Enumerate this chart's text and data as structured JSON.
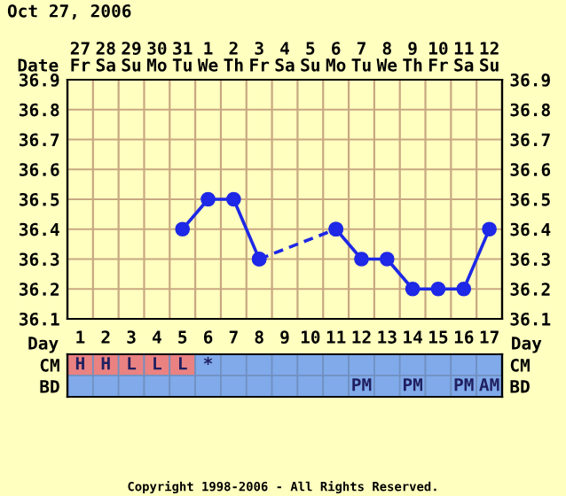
{
  "chart_data": [
    {
      "type": "line",
      "title": "Oct 27, 2006",
      "xlabel": "Date",
      "categories": [
        "27\nFr",
        "28\nSa",
        "29\nSu",
        "30\nMo",
        "31\nTu",
        "1\nWe",
        "2\nTh",
        "3\nFr",
        "4\nSa",
        "5\nSu",
        "6\nMo",
        "7\nTu",
        "8\nWe",
        "9\nTh",
        "10\nFr",
        "11\nSa",
        "12\nSu"
      ],
      "ylim": [
        36.1,
        36.9
      ],
      "yticks": [
        36.1,
        36.2,
        36.3,
        36.4,
        36.5,
        36.6,
        36.7,
        36.8,
        36.9
      ],
      "y2lim": [
        36.1,
        36.9
      ],
      "y2ticks": [
        36.1,
        36.2,
        36.3,
        36.4,
        36.5,
        36.6,
        36.7,
        36.8,
        36.9
      ],
      "grid": true,
      "marker": "circle",
      "series": [
        {
          "color": "#1e28e6",
          "line_style": "solid",
          "values": [
            null,
            null,
            null,
            null,
            36.4,
            36.5,
            36.5,
            36.3,
            null,
            null,
            null,
            null,
            null,
            null,
            null,
            null,
            null
          ]
        },
        {
          "color": "#1e28e6",
          "line_style": "solid",
          "values": [
            null,
            null,
            null,
            null,
            null,
            null,
            null,
            null,
            null,
            null,
            36.4,
            36.3,
            36.3,
            36.2,
            36.2,
            36.2,
            36.4
          ]
        },
        {
          "color": "#1e28e6",
          "line_style": "dashed",
          "values": [
            null,
            null,
            null,
            null,
            null,
            null,
            null,
            36.3,
            null,
            null,
            36.4,
            null,
            null,
            null,
            null,
            null,
            null
          ]
        }
      ]
    },
    {
      "type": "heatmap",
      "xlabel": "Day",
      "categories": [
        "1",
        "2",
        "3",
        "4",
        "5",
        "6",
        "7",
        "8",
        "9",
        "10",
        "11",
        "12",
        "13",
        "14",
        "15",
        "16",
        "17"
      ],
      "y_categories": [
        "CM",
        "BD"
      ],
      "y2_categories": [
        "CM",
        "BD"
      ],
      "cells": [
        [
          null,
          null,
          null,
          null,
          null,
          null,
          null,
          null,
          null,
          null,
          null,
          null,
          null,
          null,
          null,
          null,
          null
        ],
        [
          null,
          null,
          null,
          null,
          null,
          null,
          null,
          null,
          null,
          null,
          null,
          null,
          null,
          null,
          null,
          null,
          null
        ]
      ],
      "colors": [
        [
          "#ea8282",
          "#ea8282",
          "#ea8282",
          "#ea8282",
          "#ea8282",
          "#80aaea",
          "#80aaea",
          "#80aaea",
          "#80aaea",
          "#80aaea",
          "#80aaea",
          "#80aaea",
          "#80aaea",
          "#80aaea",
          "#80aaea",
          "#80aaea",
          "#80aaea"
        ],
        [
          "#80aaea",
          "#80aaea",
          "#80aaea",
          "#80aaea",
          "#80aaea",
          "#80aaea",
          "#80aaea",
          "#80aaea",
          "#80aaea",
          "#80aaea",
          "#80aaea",
          "#80aaea",
          "#80aaea",
          "#80aaea",
          "#80aaea",
          "#80aaea",
          "#80aaea"
        ]
      ],
      "cell_labels": [
        [
          "H",
          "H",
          "L",
          "L",
          "L",
          "*",
          null,
          null,
          null,
          null,
          null,
          null,
          null,
          null,
          null,
          null,
          null
        ],
        [
          null,
          null,
          null,
          null,
          null,
          null,
          null,
          null,
          null,
          null,
          null,
          "PM",
          null,
          "PM",
          null,
          "PM",
          "AM"
        ]
      ],
      "annotations": [
        "Copyright 1998-2006 - All Rights Reserved."
      ]
    }
  ]
}
